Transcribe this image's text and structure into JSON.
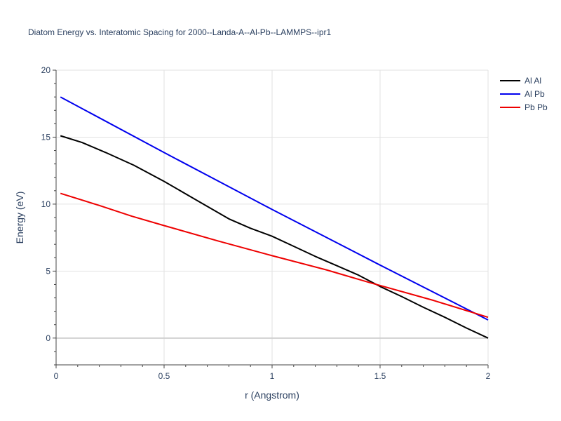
{
  "chart_data": {
    "type": "line",
    "title": "Diatom Energy vs. Interatomic Spacing for 2000--Landa-A--Al-Pb--LAMMPS--ipr1",
    "xlabel": "r (Angstrom)",
    "ylabel": "Energy (eV)",
    "xlim": [
      0,
      2
    ],
    "ylim": [
      -2,
      20
    ],
    "xticks": [
      0,
      0.5,
      1,
      1.5,
      2
    ],
    "xtick_labels": [
      "0",
      "0.5",
      "1",
      "1.5",
      "2"
    ],
    "yticks": [
      0,
      5,
      10,
      15,
      20
    ],
    "ytick_labels": [
      "0",
      "5",
      "10",
      "15",
      "20"
    ],
    "grid": true,
    "legend": "top-right",
    "series": [
      {
        "name": "Al Al",
        "color": "#000000",
        "x": [
          0.02,
          0.12,
          0.23,
          0.36,
          0.5,
          0.65,
          0.8,
          0.9,
          1.0,
          1.1,
          1.2,
          1.3,
          1.4,
          1.5,
          1.6,
          1.7,
          1.8,
          1.9,
          2.0
        ],
        "y": [
          15.1,
          14.6,
          13.85,
          12.9,
          11.7,
          10.3,
          8.9,
          8.2,
          7.6,
          6.85,
          6.1,
          5.4,
          4.7,
          3.85,
          3.1,
          2.3,
          1.55,
          0.75,
          0.0
        ]
      },
      {
        "name": "Al Pb",
        "color": "#0000ee",
        "x": [
          0.02,
          0.5,
          1.0,
          1.5,
          2.0
        ],
        "y": [
          18.0,
          13.85,
          9.6,
          5.45,
          1.35
        ]
      },
      {
        "name": "Pb Pb",
        "color": "#ee0000",
        "x": [
          0.02,
          0.2,
          0.35,
          0.5,
          0.75,
          1.0,
          1.25,
          1.45,
          1.75,
          2.0
        ],
        "y": [
          10.8,
          9.9,
          9.1,
          8.4,
          7.25,
          6.15,
          5.1,
          4.15,
          2.8,
          1.55
        ]
      }
    ]
  }
}
